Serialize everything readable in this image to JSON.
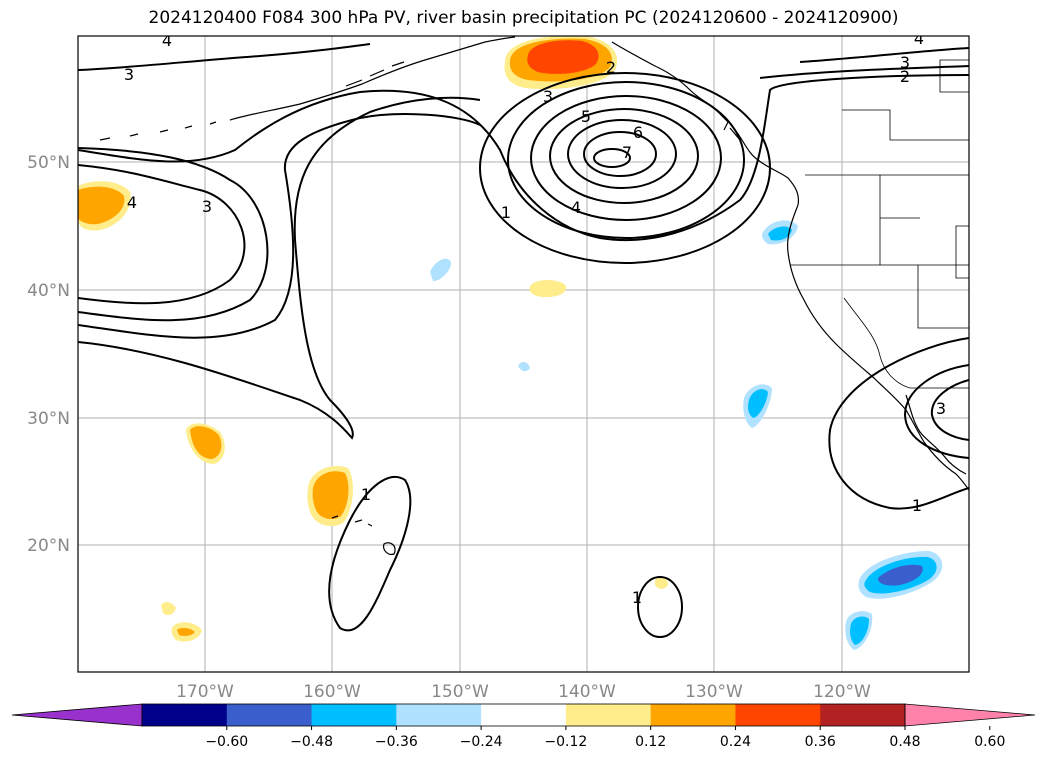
{
  "title": "2024120400 F084 300 hPa PV, river basin precipitation PC (2024120600 - 2024120900)",
  "latitude_labels": [
    "50°N",
    "40°N",
    "30°N",
    "20°N"
  ],
  "longitude_labels": [
    "170°W",
    "160°W",
    "150°W",
    "140°W",
    "130°W",
    "120°W"
  ],
  "pv_contour_labels": [
    "4",
    "3",
    "3",
    "4",
    "3",
    "2",
    "3",
    "5",
    "6",
    "7",
    "4",
    "1",
    "4",
    "2",
    "1",
    "1",
    "1",
    "3"
  ],
  "colorbar": {
    "tick_labels": [
      "−0.60",
      "−0.48",
      "−0.36",
      "−0.24",
      "−0.12",
      "0.12",
      "0.24",
      "0.36",
      "0.48",
      "0.60"
    ],
    "colors": [
      "#9932cc",
      "#00008b",
      "#3a5fcd",
      "#00bfff",
      "#b0e2ff",
      "#ffffff",
      "#ffec8b",
      "#ffa500",
      "#ff4500",
      "#b22222",
      "#ff82ab"
    ]
  },
  "colors": {
    "coastline": "#000000",
    "gridline": "#b0b0b0",
    "pv_contour": "#000000"
  }
}
